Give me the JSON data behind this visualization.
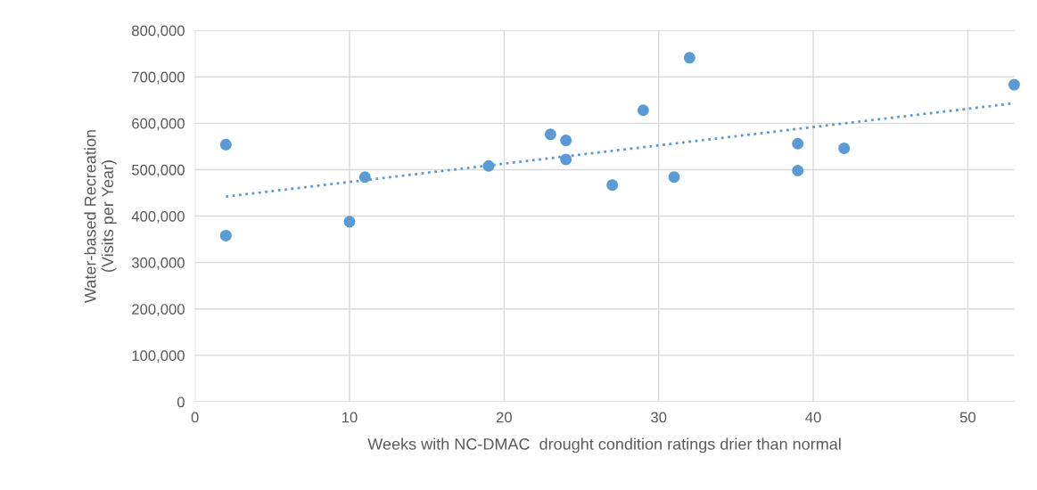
{
  "chart_data": {
    "type": "scatter",
    "xlabel": "Weeks with NC-DMAC  drought condition ratings drier than normal",
    "ylabel": "Water-based Recreation\n(Visits per Year)",
    "xlim": [
      0,
      53
    ],
    "xticks": [
      0,
      10,
      20,
      30,
      40,
      50
    ],
    "ylim": [
      0,
      800000
    ],
    "yticks": [
      {
        "value": 0,
        "label": "0"
      },
      {
        "value": 100000,
        "label": "100,000"
      },
      {
        "value": 200000,
        "label": "200,000"
      },
      {
        "value": 300000,
        "label": "300,000"
      },
      {
        "value": 400000,
        "label": "400,000"
      },
      {
        "value": 500000,
        "label": "500,000"
      },
      {
        "value": 600000,
        "label": "600,000"
      },
      {
        "value": 700000,
        "label": "700,000"
      },
      {
        "value": 800000,
        "label": "800,000"
      }
    ],
    "grid": true,
    "marker": "circle",
    "series": [
      {
        "color": "#5b9bd5",
        "x": [
          2,
          2,
          10,
          11,
          19,
          23,
          24,
          24,
          27,
          29,
          31,
          32,
          39,
          39,
          42,
          53
        ],
        "values": [
          554000,
          358000,
          388000,
          484000,
          508000,
          576000,
          563000,
          522000,
          467000,
          628000,
          484000,
          741000,
          556000,
          498000,
          546000,
          683000
        ]
      },
      {
        "type": "line",
        "color": "#5b9bd5",
        "line_style": "dotted",
        "marker": "none",
        "x": [
          2,
          53
        ],
        "values": [
          442000,
          643000
        ]
      }
    ]
  }
}
